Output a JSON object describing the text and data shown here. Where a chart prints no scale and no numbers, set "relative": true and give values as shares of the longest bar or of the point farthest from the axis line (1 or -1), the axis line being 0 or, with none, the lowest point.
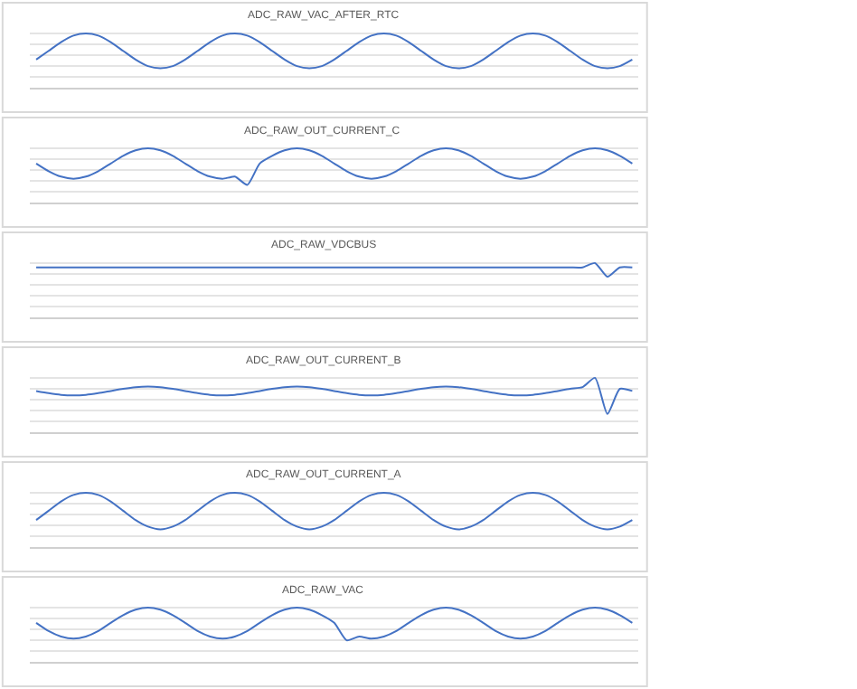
{
  "chart_data": [
    {
      "type": "line",
      "title": "ADC_RAW_VAC_AFTER_RTC",
      "relative": true,
      "grid": "y",
      "categories": [
        null,
        null,
        null,
        null,
        null,
        null,
        null,
        null,
        null,
        null,
        null,
        null,
        null,
        null,
        null,
        null,
        null,
        null,
        null,
        null,
        null,
        null,
        null,
        null,
        null,
        null,
        null,
        null,
        null,
        null,
        null,
        null,
        null,
        null,
        null,
        null,
        null,
        null,
        null,
        null,
        null,
        null,
        null,
        null,
        null,
        null,
        null,
        null,
        null
      ],
      "series": [
        {
          "color": "#4472c4",
          "values": [
            0.52,
            0.68,
            0.84,
            0.96,
            1.0,
            0.96,
            0.84,
            0.68,
            0.52,
            0.4,
            0.36,
            0.4,
            0.52,
            0.68,
            0.84,
            0.96,
            1.0,
            0.96,
            0.84,
            0.68,
            0.52,
            0.4,
            0.36,
            0.4,
            0.52,
            0.68,
            0.84,
            0.96,
            1.0,
            0.96,
            0.84,
            0.68,
            0.52,
            0.4,
            0.36,
            0.4,
            0.52,
            0.68,
            0.84,
            0.96,
            1.0,
            0.96,
            0.84,
            0.68,
            0.52,
            0.4,
            0.36,
            0.4,
            0.52
          ]
        }
      ]
    },
    {
      "type": "line",
      "title": "ADC_RAW_OUT_CURRENT_C",
      "relative": true,
      "grid": "y",
      "categories": [
        null,
        null,
        null,
        null,
        null,
        null,
        null,
        null,
        null,
        null,
        null,
        null,
        null,
        null,
        null,
        null,
        null,
        null,
        null,
        null,
        null,
        null,
        null,
        null,
        null,
        null,
        null,
        null,
        null,
        null,
        null,
        null,
        null,
        null,
        null,
        null,
        null,
        null,
        null,
        null,
        null,
        null,
        null,
        null,
        null,
        null,
        null,
        null,
        null
      ],
      "series": [
        {
          "color": "#4472c4",
          "values": [
            0.72,
            0.58,
            0.48,
            0.44,
            0.48,
            0.58,
            0.72,
            0.86,
            0.96,
            1.0,
            0.96,
            0.86,
            0.72,
            0.58,
            0.48,
            0.44,
            0.48,
            0.33,
            0.72,
            0.86,
            0.96,
            1.0,
            0.96,
            0.86,
            0.72,
            0.58,
            0.48,
            0.44,
            0.48,
            0.58,
            0.72,
            0.86,
            0.96,
            1.0,
            0.96,
            0.86,
            0.72,
            0.58,
            0.48,
            0.44,
            0.48,
            0.58,
            0.72,
            0.86,
            0.96,
            1.0,
            0.96,
            0.86,
            0.72
          ]
        }
      ]
    },
    {
      "type": "line",
      "title": "ADC_RAW_VDCBUS",
      "relative": true,
      "grid": "y",
      "categories": [
        null,
        null,
        null,
        null,
        null,
        null,
        null,
        null,
        null,
        null,
        null,
        null,
        null,
        null,
        null,
        null,
        null,
        null,
        null,
        null,
        null,
        null,
        null,
        null,
        null,
        null,
        null,
        null,
        null,
        null,
        null,
        null,
        null,
        null,
        null,
        null,
        null,
        null,
        null,
        null,
        null,
        null,
        null,
        null,
        null,
        null,
        null,
        null,
        null
      ],
      "series": [
        {
          "color": "#4472c4",
          "values": [
            0.92,
            0.92,
            0.92,
            0.92,
            0.92,
            0.92,
            0.92,
            0.92,
            0.92,
            0.92,
            0.92,
            0.92,
            0.92,
            0.92,
            0.92,
            0.92,
            0.92,
            0.92,
            0.92,
            0.92,
            0.92,
            0.92,
            0.92,
            0.92,
            0.92,
            0.92,
            0.92,
            0.92,
            0.92,
            0.92,
            0.92,
            0.92,
            0.92,
            0.92,
            0.92,
            0.92,
            0.92,
            0.92,
            0.92,
            0.92,
            0.92,
            0.92,
            0.92,
            0.92,
            0.92,
            1.0,
            0.75,
            0.92,
            0.92
          ]
        }
      ]
    },
    {
      "type": "line",
      "title": "ADC_RAW_OUT_CURRENT_B",
      "relative": true,
      "grid": "y",
      "categories": [
        null,
        null,
        null,
        null,
        null,
        null,
        null,
        null,
        null,
        null,
        null,
        null,
        null,
        null,
        null,
        null,
        null,
        null,
        null,
        null,
        null,
        null,
        null,
        null,
        null,
        null,
        null,
        null,
        null,
        null,
        null,
        null,
        null,
        null,
        null,
        null,
        null,
        null,
        null,
        null,
        null,
        null,
        null,
        null,
        null,
        null,
        null,
        null,
        null
      ],
      "series": [
        {
          "color": "#4472c4",
          "values": [
            0.76,
            0.72,
            0.69,
            0.68,
            0.69,
            0.72,
            0.76,
            0.8,
            0.83,
            0.84,
            0.83,
            0.8,
            0.76,
            0.72,
            0.69,
            0.68,
            0.69,
            0.72,
            0.76,
            0.8,
            0.83,
            0.84,
            0.83,
            0.8,
            0.76,
            0.72,
            0.69,
            0.68,
            0.69,
            0.72,
            0.76,
            0.8,
            0.83,
            0.84,
            0.83,
            0.8,
            0.76,
            0.72,
            0.69,
            0.68,
            0.69,
            0.72,
            0.76,
            0.8,
            0.83,
            1.0,
            0.34,
            0.8,
            0.76
          ]
        }
      ]
    },
    {
      "type": "line",
      "title": "ADC_RAW_OUT_CURRENT_A",
      "relative": true,
      "grid": "y",
      "categories": [
        null,
        null,
        null,
        null,
        null,
        null,
        null,
        null,
        null,
        null,
        null,
        null,
        null,
        null,
        null,
        null,
        null,
        null,
        null,
        null,
        null,
        null,
        null,
        null,
        null,
        null,
        null,
        null,
        null,
        null,
        null,
        null,
        null,
        null,
        null,
        null,
        null,
        null,
        null,
        null,
        null,
        null,
        null,
        null,
        null,
        null,
        null,
        null,
        null
      ],
      "series": [
        {
          "color": "#4472c4",
          "values": [
            0.5,
            0.67,
            0.84,
            0.96,
            1.0,
            0.96,
            0.84,
            0.67,
            0.5,
            0.38,
            0.33,
            0.38,
            0.5,
            0.67,
            0.84,
            0.96,
            1.0,
            0.96,
            0.84,
            0.67,
            0.5,
            0.38,
            0.33,
            0.38,
            0.5,
            0.67,
            0.84,
            0.96,
            1.0,
            0.96,
            0.84,
            0.67,
            0.5,
            0.38,
            0.33,
            0.38,
            0.5,
            0.67,
            0.84,
            0.96,
            1.0,
            0.96,
            0.84,
            0.67,
            0.5,
            0.38,
            0.33,
            0.38,
            0.5
          ]
        }
      ]
    },
    {
      "type": "line",
      "title": "ADC_RAW_VAC",
      "relative": true,
      "grid": "y",
      "categories": [
        null,
        null,
        null,
        null,
        null,
        null,
        null,
        null,
        null,
        null,
        null,
        null,
        null,
        null,
        null,
        null,
        null,
        null,
        null,
        null,
        null,
        null,
        null,
        null,
        null,
        null,
        null,
        null,
        null,
        null,
        null,
        null,
        null,
        null,
        null,
        null,
        null,
        null,
        null,
        null,
        null,
        null,
        null,
        null,
        null,
        null,
        null,
        null,
        null
      ],
      "series": [
        {
          "color": "#4472c4",
          "values": [
            0.72,
            0.57,
            0.47,
            0.43,
            0.47,
            0.57,
            0.72,
            0.86,
            0.96,
            1.0,
            0.96,
            0.86,
            0.72,
            0.57,
            0.47,
            0.43,
            0.47,
            0.57,
            0.72,
            0.86,
            0.96,
            1.0,
            0.96,
            0.86,
            0.72,
            0.4,
            0.47,
            0.43,
            0.47,
            0.57,
            0.72,
            0.86,
            0.96,
            1.0,
            0.96,
            0.86,
            0.72,
            0.57,
            0.47,
            0.43,
            0.47,
            0.57,
            0.72,
            0.86,
            0.96,
            1.0,
            0.96,
            0.86,
            0.72
          ]
        }
      ]
    }
  ]
}
